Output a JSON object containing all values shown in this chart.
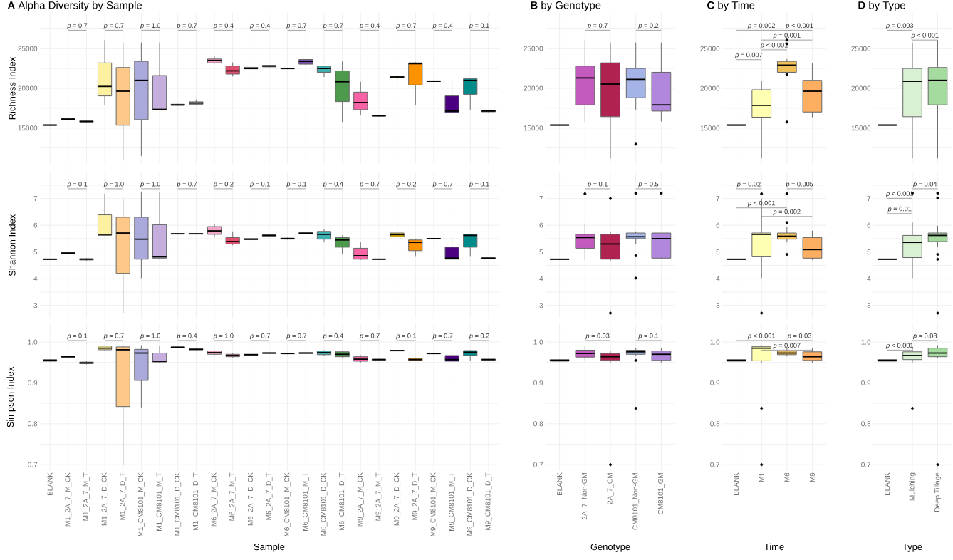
{
  "chart_data": [
    {
      "type": "box",
      "title": "**A** Alpha Diversity by Sample",
      "ylabel": "Richness Index",
      "tick_labels": "y",
      "grid": true,
      "ylim": [
        10500,
        29500
      ],
      "yticks": [
        {
          "value": 12500,
          "label": null
        },
        15000,
        {
          "value": 17500,
          "label": null
        },
        20000,
        {
          "value": 22500,
          "label": null
        },
        25000,
        {
          "value": 27500,
          "label": null
        }
      ],
      "categories": [
        null,
        null,
        null,
        null,
        null,
        null,
        null,
        null,
        null,
        null,
        null,
        null,
        null,
        null,
        null,
        null,
        null,
        null,
        null,
        null,
        null,
        null,
        null,
        null,
        null
      ],
      "colors": [
        "#b3b3b3",
        "#b3b3b3",
        "#b3b3b3",
        "#fdf0a0",
        "#fdc98a",
        "#a9a9dc",
        "#c5aede",
        "#b3b3b3",
        "#b3b3b3",
        "#f4a6c8",
        "#e0506e",
        "#b3b3b3",
        "#b3b3b3",
        "#b3b3b3",
        "#7b4fb0",
        "#3fb0b0",
        "#4d9a4d",
        "#f763a5",
        "#b3b3b3",
        "#e6b400",
        "#ff9200",
        "#b3b3b3",
        "#4b0082",
        "#008b8b",
        "#b3b3b3"
      ],
      "boxes": [
        {
          "low": 15300,
          "q1": 15330,
          "median": 15380,
          "q3": 15420,
          "high": 15450
        },
        {
          "low": 16000,
          "q1": 16050,
          "median": 16130,
          "q3": 16200,
          "high": 16250
        },
        {
          "low": 15700,
          "q1": 15780,
          "median": 15830,
          "q3": 15900,
          "high": 16000
        },
        {
          "low": 17900,
          "q1": 19050,
          "median": 20240,
          "q3": 23200,
          "high": 26070
        },
        {
          "low": 11010,
          "q1": 15360,
          "median": 19640,
          "q3": 22620,
          "high": 25770
        },
        {
          "low": 11490,
          "q1": 16070,
          "median": 21010,
          "q3": 23390,
          "high": 25770
        },
        {
          "low": 17300,
          "q1": 17300,
          "median": 17350,
          "q3": 21610,
          "high": 25770
        },
        {
          "low": 17800,
          "q1": 17850,
          "median": 17920,
          "q3": 18000,
          "high": 18050
        },
        {
          "low": 17950,
          "q1": 18000,
          "median": 18150,
          "q3": 18300,
          "high": 18600
        },
        {
          "low": 23100,
          "q1": 23210,
          "median": 23510,
          "q3": 23690,
          "high": 23990
        },
        {
          "low": 21490,
          "q1": 21790,
          "median": 22200,
          "q3": 22800,
          "high": 23270
        },
        {
          "low": 22400,
          "q1": 22450,
          "median": 22500,
          "q3": 22650,
          "high": 22700
        },
        {
          "low": 22650,
          "q1": 22700,
          "median": 22800,
          "q3": 22900,
          "high": 22950
        },
        {
          "low": 22400,
          "q1": 22450,
          "median": 22500,
          "q3": 22550,
          "high": 22600
        },
        {
          "low": 22800,
          "q1": 23040,
          "median": 23390,
          "q3": 23630,
          "high": 23630
        },
        {
          "low": 21430,
          "q1": 22020,
          "median": 22500,
          "q3": 22800,
          "high": 22800
        },
        {
          "low": 15770,
          "q1": 18330,
          "median": 20830,
          "q3": 22200,
          "high": 23390
        },
        {
          "low": 16670,
          "q1": 17320,
          "median": 18210,
          "q3": 19520,
          "high": 20830
        },
        {
          "low": 16450,
          "q1": 16500,
          "median": 16550,
          "q3": 16580,
          "high": 16600
        },
        {
          "low": 21000,
          "q1": 21300,
          "median": 21430,
          "q3": 21480,
          "high": 21500
        },
        {
          "low": 17920,
          "q1": 20420,
          "median": 23100,
          "q3": 23210,
          "high": 23300
        },
        {
          "low": 20800,
          "q1": 20850,
          "median": 20890,
          "q3": 20950,
          "high": 21000
        },
        {
          "low": 16900,
          "q1": 16960,
          "median": 17140,
          "q3": 19050,
          "high": 20890
        },
        {
          "low": 17300,
          "q1": 19250,
          "median": 21000,
          "q3": 21200,
          "high": 21200
        },
        {
          "low": 17000,
          "q1": 17050,
          "median": 17140,
          "q3": 17180,
          "high": 17200
        }
      ],
      "annotations": [
        "*p* = 0.7",
        "*p* = 0.7",
        "*p* = 1.0",
        "*p* = 0.7",
        "*p* = 0.4",
        "*p* = 0.4",
        "*p* = 0.7",
        "*p* = 0.7",
        "*p* = 0.4",
        "*p* = 0.7",
        "*p* = 0.4",
        "*p* = 0.1"
      ]
    },
    {
      "type": "box",
      "title": "**B** by Genotype",
      "tick_labels": "y",
      "grid": true,
      "ylim": [
        10500,
        29500
      ],
      "yticks": [
        {
          "value": 12500,
          "label": null
        },
        15000,
        {
          "value": 17500,
          "label": null
        },
        20000,
        {
          "value": 22500,
          "label": null
        },
        25000,
        {
          "value": 27500,
          "label": null
        }
      ],
      "categories": [
        null,
        null,
        null,
        null,
        null
      ],
      "colors": [
        "#b3b3b3",
        "#c35bbf",
        "#b0224f",
        "#a4b4e6",
        "#b187dd"
      ],
      "boxes": [
        {
          "low": 15300,
          "q1": 15330,
          "median": 15380,
          "q3": 15420,
          "high": 15450
        },
        {
          "low": 15770,
          "q1": 17920,
          "median": 21310,
          "q3": 22800,
          "high": 26070
        },
        {
          "low": 11190,
          "q1": 16430,
          "median": 20540,
          "q3": 23210,
          "high": 25770
        },
        {
          "low": 17320,
          "q1": 18810,
          "median": 21130,
          "q3": 22500,
          "high": 25770,
          "outliers": [
            12980
          ]
        },
        {
          "low": 15830,
          "q1": 17140,
          "median": 17920,
          "q3": 22020,
          "high": 25770
        }
      ],
      "annotations": [
        "*p* = 0.7",
        "*p* = 0.2"
      ]
    },
    {
      "type": "box",
      "title": "**C** by Time",
      "tick_labels": "y",
      "grid": true,
      "ylim": [
        10500,
        29500
      ],
      "yticks": [
        {
          "value": 12500,
          "label": null
        },
        15000,
        {
          "value": 17500,
          "label": null
        },
        20000,
        {
          "value": 22500,
          "label": null
        },
        25000,
        {
          "value": 27500,
          "label": null
        }
      ],
      "categories": [
        null,
        null,
        null,
        null
      ],
      "colors": [
        "#b3b3b3",
        "#ffffb2",
        "#f0c05a",
        "#fdae61"
      ],
      "boxes": [
        {
          "low": 15300,
          "q1": 15330,
          "median": 15380,
          "q3": 15420,
          "high": 15450
        },
        {
          "low": 11190,
          "q1": 16370,
          "median": 17860,
          "q3": 19820,
          "high": 20890
        },
        {
          "low": 22000,
          "q1": 22020,
          "median": 22920,
          "q3": 23390,
          "high": 23690,
          "outliers": [
            26070,
            25600,
            21730,
            15770
          ]
        },
        {
          "low": 16370,
          "q1": 17020,
          "median": 19640,
          "q3": 21010,
          "high": 23210
        }
      ],
      "annotations": [
        "*p* = 0.002",
        "*p* < 0.001",
        "*p* = 0.001",
        "*p* < 0.001",
        "*p* = 0.007"
      ]
    },
    {
      "type": "box",
      "title": "**D** by Type",
      "tick_labels": "y",
      "grid": true,
      "ylim": [
        10500,
        29500
      ],
      "yticks": [
        {
          "value": 12500,
          "label": null
        },
        15000,
        {
          "value": 17500,
          "label": null
        },
        20000,
        {
          "value": 22500,
          "label": null
        },
        25000,
        {
          "value": 27500,
          "label": null
        }
      ],
      "categories": [
        null,
        null,
        null
      ],
      "colors": [
        "#b3b3b3",
        "#d9f0d3",
        "#a6dba0"
      ],
      "boxes": [
        {
          "low": 15300,
          "q1": 15330,
          "median": 15380,
          "q3": 15420,
          "high": 15450
        },
        {
          "low": 11190,
          "q1": 16430,
          "median": 20890,
          "q3": 22500,
          "high": 25770
        },
        {
          "low": 11190,
          "q1": 17920,
          "median": 21010,
          "q3": 22620,
          "high": 26070
        }
      ],
      "annotations": [
        "*p* = 0.003",
        "*p* < 0.001"
      ]
    },
    {
      "type": "box",
      "ylabel": "Shannon Index",
      "tick_labels": "y",
      "grid": true,
      "ylim": [
        2.5,
        8.0
      ],
      "yticks": [
        3,
        {
          "value": 3.5,
          "label": null
        },
        4,
        {
          "value": 4.5,
          "label": null
        },
        5,
        {
          "value": 5.5,
          "label": null
        },
        6,
        {
          "value": 6.5,
          "label": null
        },
        7,
        {
          "value": 7.5,
          "label": null
        }
      ],
      "categories": [
        null,
        null,
        null,
        null,
        null,
        null,
        null,
        null,
        null,
        null,
        null,
        null,
        null,
        null,
        null,
        null,
        null,
        null,
        null,
        null,
        null,
        null,
        null,
        null,
        null
      ],
      "colors": [
        "#b3b3b3",
        "#b3b3b3",
        "#b3b3b3",
        "#fdf0a0",
        "#fdc98a",
        "#a9a9dc",
        "#c5aede",
        "#b3b3b3",
        "#b3b3b3",
        "#f4a6c8",
        "#e0506e",
        "#b3b3b3",
        "#b3b3b3",
        "#b3b3b3",
        "#7b4fb0",
        "#3fb0b0",
        "#4d9a4d",
        "#f763a5",
        "#b3b3b3",
        "#e6b400",
        "#ff9200",
        "#b3b3b3",
        "#4b0082",
        "#008b8b",
        "#b3b3b3"
      ],
      "boxes": [
        {
          "low": 4.7,
          "q1": 4.71,
          "median": 4.73,
          "q3": 4.74,
          "high": 4.75
        },
        {
          "low": 4.93,
          "q1": 4.94,
          "median": 4.96,
          "q3": 4.97,
          "high": 4.98
        },
        {
          "low": 4.67,
          "q1": 4.7,
          "median": 4.73,
          "q3": 4.75,
          "high": 4.77
        },
        {
          "low": 5.6,
          "q1": 5.62,
          "median": 5.66,
          "q3": 6.39,
          "high": 7.18
        },
        {
          "low": 2.71,
          "q1": 4.2,
          "median": 5.71,
          "q3": 6.3,
          "high": 6.96
        },
        {
          "low": 4.02,
          "q1": 4.73,
          "median": 5.48,
          "q3": 6.3,
          "high": 7.23
        },
        {
          "low": 4.75,
          "q1": 4.77,
          "median": 4.82,
          "q3": 6.02,
          "high": 7.23
        },
        {
          "low": 5.66,
          "q1": 5.67,
          "median": 5.68,
          "q3": 5.69,
          "high": 5.7
        },
        {
          "low": 5.66,
          "q1": 5.67,
          "median": 5.68,
          "q3": 5.69,
          "high": 5.7
        },
        {
          "low": 5.57,
          "q1": 5.66,
          "median": 5.79,
          "q3": 5.95,
          "high": 6.04
        },
        {
          "low": 5.25,
          "q1": 5.3,
          "median": 5.39,
          "q3": 5.54,
          "high": 5.77
        },
        {
          "low": 5.44,
          "q1": 5.46,
          "median": 5.48,
          "q3": 5.5,
          "high": 5.52
        },
        {
          "low": 5.55,
          "q1": 5.58,
          "median": 5.62,
          "q3": 5.65,
          "high": 5.68
        },
        {
          "low": 5.46,
          "q1": 5.48,
          "median": 5.5,
          "q3": 5.52,
          "high": 5.54
        },
        {
          "low": 5.66,
          "q1": 5.68,
          "median": 5.7,
          "q3": 5.72,
          "high": 5.74
        },
        {
          "low": 5.39,
          "q1": 5.48,
          "median": 5.66,
          "q3": 5.77,
          "high": 5.86
        },
        {
          "low": 4.91,
          "q1": 5.18,
          "median": 5.45,
          "q3": 5.54,
          "high": 5.62
        },
        {
          "low": 4.7,
          "q1": 4.73,
          "median": 4.86,
          "q3": 5.14,
          "high": 5.36
        },
        {
          "low": 4.71,
          "q1": 4.72,
          "median": 4.73,
          "q3": 4.74,
          "high": 4.75
        },
        {
          "low": 5.55,
          "q1": 5.57,
          "median": 5.65,
          "q3": 5.71,
          "high": 5.8
        },
        {
          "low": 4.82,
          "q1": 5.05,
          "median": 5.36,
          "q3": 5.45,
          "high": 5.5
        },
        {
          "low": 5.48,
          "q1": 5.49,
          "median": 5.5,
          "q3": 5.51,
          "high": 5.52
        },
        {
          "low": 4.73,
          "q1": 4.73,
          "median": 4.77,
          "q3": 5.18,
          "high": 5.57
        },
        {
          "low": 4.82,
          "q1": 5.18,
          "median": 5.62,
          "q3": 5.66,
          "high": 5.66
        },
        {
          "low": 4.75,
          "q1": 4.76,
          "median": 4.77,
          "q3": 4.78,
          "high": 4.79
        }
      ],
      "annotations": [
        "*p* = 0.1",
        "*p* = 1.0",
        "*p* = 1.0",
        "*p* = 0.7",
        "*p* = 0.2",
        "*p* = 0.1",
        "*p* = 0.1",
        "*p* = 0.4",
        "*p* = 0.7",
        "*p* = 0.2",
        "*p* = 0.7",
        "*p* = 0.1"
      ]
    },
    {
      "type": "box",
      "tick_labels": "y",
      "grid": true,
      "ylim": [
        2.5,
        8.0
      ],
      "yticks": [
        3,
        {
          "value": 3.5,
          "label": null
        },
        4,
        {
          "value": 4.5,
          "label": null
        },
        5,
        {
          "value": 5.5,
          "label": null
        },
        6,
        {
          "value": 6.5,
          "label": null
        },
        7,
        {
          "value": 7.5,
          "label": null
        }
      ],
      "categories": [
        null,
        null,
        null,
        null,
        null
      ],
      "colors": [
        "#b3b3b3",
        "#c35bbf",
        "#b0224f",
        "#a4b4e6",
        "#b187dd"
      ],
      "boxes": [
        {
          "low": 4.7,
          "q1": 4.71,
          "median": 4.73,
          "q3": 4.74,
          "high": 4.75
        },
        {
          "low": 4.7,
          "q1": 5.14,
          "median": 5.54,
          "q3": 5.66,
          "high": 6.07,
          "outliers": [
            7.18
          ]
        },
        {
          "low": 4.64,
          "q1": 4.73,
          "median": 5.3,
          "q3": 5.66,
          "high": 5.77,
          "outliers": [
            7.0,
            2.71
          ]
        },
        {
          "low": 5.3,
          "q1": 5.5,
          "median": 5.57,
          "q3": 5.71,
          "high": 5.77,
          "outliers": [
            7.2,
            4.86,
            4.02
          ]
        },
        {
          "low": 4.73,
          "q1": 4.77,
          "median": 5.5,
          "q3": 5.71,
          "high": 5.71,
          "outliers": [
            7.2
          ]
        }
      ],
      "annotations": [
        "*p* = 0.1",
        "*p* = 0.5"
      ]
    },
    {
      "type": "box",
      "tick_labels": "y",
      "grid": true,
      "ylim": [
        2.5,
        8.0
      ],
      "yticks": [
        3,
        {
          "value": 3.5,
          "label": null
        },
        4,
        {
          "value": 4.5,
          "label": null
        },
        5,
        {
          "value": 5.5,
          "label": null
        },
        6,
        {
          "value": 6.5,
          "label": null
        },
        7,
        {
          "value": 7.5,
          "label": null
        }
      ],
      "categories": [
        null,
        null,
        null,
        null
      ],
      "colors": [
        "#b3b3b3",
        "#ffffb2",
        "#f0c05a",
        "#fdae61"
      ],
      "boxes": [
        {
          "low": 4.7,
          "q1": 4.71,
          "median": 4.73,
          "q3": 4.74,
          "high": 4.75
        },
        {
          "low": 4.02,
          "q1": 4.82,
          "median": 5.66,
          "q3": 5.71,
          "high": 7.0,
          "outliers": [
            7.18,
            2.71
          ]
        },
        {
          "low": 5.36,
          "q1": 5.48,
          "median": 5.59,
          "q3": 5.71,
          "high": 5.93,
          "outliers": [
            7.18,
            6.1,
            4.91
          ]
        },
        {
          "low": 4.7,
          "q1": 4.77,
          "median": 5.09,
          "q3": 5.54,
          "high": 5.8
        }
      ],
      "annotations": [
        "*p* = 0.02",
        "*p* < 0.001",
        "*p* = 0.005",
        "*p* = 0.002"
      ]
    },
    {
      "type": "box",
      "tick_labels": "y",
      "grid": true,
      "ylim": [
        2.5,
        8.0
      ],
      "yticks": [
        3,
        {
          "value": 3.5,
          "label": null
        },
        4,
        {
          "value": 4.5,
          "label": null
        },
        5,
        {
          "value": 5.5,
          "label": null
        },
        6,
        {
          "value": 6.5,
          "label": null
        },
        7,
        {
          "value": 7.5,
          "label": null
        }
      ],
      "categories": [
        null,
        null,
        null
      ],
      "colors": [
        "#b3b3b3",
        "#d9f0d3",
        "#a6dba0"
      ],
      "boxes": [
        {
          "low": 4.7,
          "q1": 4.71,
          "median": 4.73,
          "q3": 4.74,
          "high": 4.75
        },
        {
          "low": 4.02,
          "q1": 4.79,
          "median": 5.36,
          "q3": 5.62,
          "high": 6.1,
          "outliers": [
            7.2
          ]
        },
        {
          "low": 5.18,
          "q1": 5.39,
          "median": 5.62,
          "q3": 5.71,
          "high": 5.98,
          "outliers": [
            7.2,
            7.02,
            4.91,
            4.73,
            2.71
          ]
        }
      ],
      "annotations": [
        "*p* < 0.001",
        "*p* = 0.04",
        "*p* = 0.01"
      ]
    },
    {
      "type": "box",
      "ylabel": "Simpson Index",
      "xlabel": "Sample",
      "grid": true,
      "ylim": [
        0.685,
        1.045
      ],
      "yticks": [
        0.7,
        {
          "value": 0.75,
          "label": null
        },
        0.8,
        {
          "value": 0.85,
          "label": null
        },
        0.9,
        {
          "value": 0.95,
          "label": null
        },
        {
          "value": 1.0,
          "label": "1.0"
        }
      ],
      "categories": [
        "BLANK",
        "M1_2A_7_M_CK",
        "M1_2A_7_M_T",
        "M1_2A_7_D_CK",
        "M1_2A_7_D_T",
        "M1_CM8101_M_CK",
        "M1_CM8101_M_T",
        "M1_CM8101_D_CK",
        "M1_CM8101_D_T",
        "M6_2A_7_M_CK",
        "M6_2A_7_M_T",
        "M6_2A_7_D_CK",
        "M6_2A_7_D_T",
        "M6_CM8101_M_CK",
        "M6_CM8101_M_T",
        "M6_CM8101_D_CK",
        "M6_CM8101_D_T",
        "M9_2A_7_M_CK",
        "M9_2A_7_M_T",
        "M9_2A_7_D_CK",
        "M9_2A_7_D_T",
        "M9_CM8101_M_CK",
        "M9_CM8101_M_T",
        "M9_CM8101_D_CK",
        "M9_CM8101_D_T"
      ],
      "colors": [
        "#b3b3b3",
        "#b3b3b3",
        "#b3b3b3",
        "#fdf0a0",
        "#fdc98a",
        "#a9a9dc",
        "#c5aede",
        "#b3b3b3",
        "#b3b3b3",
        "#f4a6c8",
        "#e0506e",
        "#b3b3b3",
        "#b3b3b3",
        "#b3b3b3",
        "#7b4fb0",
        "#3fb0b0",
        "#4d9a4d",
        "#f763a5",
        "#b3b3b3",
        "#e6b400",
        "#ff9200",
        "#b3b3b3",
        "#4b0082",
        "#008b8b",
        "#b3b3b3"
      ],
      "boxes": [
        {
          "low": 0.952,
          "q1": 0.953,
          "median": 0.955,
          "q3": 0.957,
          "high": 0.958
        },
        {
          "low": 0.962,
          "q1": 0.963,
          "median": 0.964,
          "q3": 0.966,
          "high": 0.967
        },
        {
          "low": 0.945,
          "q1": 0.947,
          "median": 0.949,
          "q3": 0.951,
          "high": 0.953
        },
        {
          "low": 0.979,
          "q1": 0.981,
          "median": 0.985,
          "q3": 0.99,
          "high": 0.992
        },
        {
          "low": 0.7,
          "q1": 0.842,
          "median": 0.981,
          "q3": 0.988,
          "high": 0.993
        },
        {
          "low": 0.84,
          "q1": 0.906,
          "median": 0.973,
          "q3": 0.982,
          "high": 0.992
        },
        {
          "low": 0.949,
          "q1": 0.951,
          "median": 0.953,
          "q3": 0.973,
          "high": 0.99
        },
        {
          "low": 0.985,
          "q1": 0.986,
          "median": 0.987,
          "q3": 0.988,
          "high": 0.989
        },
        {
          "low": 0.98,
          "q1": 0.981,
          "median": 0.982,
          "q3": 0.983,
          "high": 0.984
        },
        {
          "low": 0.968,
          "q1": 0.97,
          "median": 0.974,
          "q3": 0.978,
          "high": 0.98
        },
        {
          "low": 0.962,
          "q1": 0.964,
          "median": 0.967,
          "q3": 0.97,
          "high": 0.972
        },
        {
          "low": 0.967,
          "q1": 0.968,
          "median": 0.969,
          "q3": 0.97,
          "high": 0.971
        },
        {
          "low": 0.971,
          "q1": 0.972,
          "median": 0.973,
          "q3": 0.974,
          "high": 0.975
        },
        {
          "low": 0.97,
          "q1": 0.971,
          "median": 0.972,
          "q3": 0.973,
          "high": 0.974
        },
        {
          "low": 0.971,
          "q1": 0.972,
          "median": 0.973,
          "q3": 0.974,
          "high": 0.975
        },
        {
          "low": 0.966,
          "q1": 0.969,
          "median": 0.974,
          "q3": 0.978,
          "high": 0.98
        },
        {
          "low": 0.962,
          "q1": 0.964,
          "median": 0.97,
          "q3": 0.976,
          "high": 0.978
        },
        {
          "low": 0.95,
          "q1": 0.953,
          "median": 0.958,
          "q3": 0.964,
          "high": 0.968
        },
        {
          "low": 0.955,
          "q1": 0.956,
          "median": 0.957,
          "q3": 0.958,
          "high": 0.959
        },
        {
          "low": 0.977,
          "q1": 0.978,
          "median": 0.979,
          "q3": 0.98,
          "high": 0.981
        },
        {
          "low": 0.953,
          "q1": 0.955,
          "median": 0.957,
          "q3": 0.96,
          "high": 0.962
        },
        {
          "low": 0.97,
          "q1": 0.971,
          "median": 0.972,
          "q3": 0.973,
          "high": 0.974
        },
        {
          "low": 0.953,
          "q1": 0.953,
          "median": 0.957,
          "q3": 0.967,
          "high": 0.976
        },
        {
          "low": 0.955,
          "q1": 0.967,
          "median": 0.975,
          "q3": 0.979,
          "high": 0.98
        },
        {
          "low": 0.955,
          "q1": 0.956,
          "median": 0.957,
          "q3": 0.958,
          "high": 0.959
        }
      ],
      "annotations": [
        "*p* = 0.1",
        "*p* = 0.7",
        "*p* = 1.0",
        "*p* = 0.4",
        "*p* = 1.0",
        "*p* = 0.7",
        "*p* = 0.7",
        "*p* = 0.4",
        "*p* = 0.7",
        "*p* = 0.1",
        "*p* = 0.7",
        "*p* = 0.2"
      ]
    },
    {
      "type": "box",
      "xlabel": "Genotype",
      "grid": true,
      "ylim": [
        0.685,
        1.045
      ],
      "yticks": [
        0.7,
        {
          "value": 0.75,
          "label": null
        },
        0.8,
        {
          "value": 0.85,
          "label": null
        },
        0.9,
        {
          "value": 0.95,
          "label": null
        },
        {
          "value": 1.0,
          "label": "1.0"
        }
      ],
      "categories": [
        "BLANK",
        "2A_7_Non-GM",
        "2A_7_GM",
        "CM8101_Non-GM",
        "CM8101_GM"
      ],
      "colors": [
        "#b3b3b3",
        "#c35bbf",
        "#b0224f",
        "#a4b4e6",
        "#b187dd"
      ],
      "boxes": [
        {
          "low": 0.952,
          "q1": 0.953,
          "median": 0.955,
          "q3": 0.957,
          "high": 0.958
        },
        {
          "low": 0.955,
          "q1": 0.963,
          "median": 0.972,
          "q3": 0.98,
          "high": 0.99
        },
        {
          "low": 0.95,
          "q1": 0.955,
          "median": 0.964,
          "q3": 0.972,
          "high": 0.978,
          "outliers": [
            0.7
          ]
        },
        {
          "low": 0.965,
          "q1": 0.97,
          "median": 0.976,
          "q3": 0.98,
          "high": 0.985,
          "outliers": [
            0.955,
            0.838
          ]
        },
        {
          "low": 0.95,
          "q1": 0.955,
          "median": 0.97,
          "q3": 0.978,
          "high": 0.985
        }
      ],
      "annotations": [
        "*p* = 0.03",
        "*p* = 0.1"
      ]
    },
    {
      "type": "box",
      "xlabel": "Time",
      "grid": true,
      "ylim": [
        0.685,
        1.045
      ],
      "yticks": [
        0.7,
        {
          "value": 0.75,
          "label": null
        },
        0.8,
        {
          "value": 0.85,
          "label": null
        },
        0.9,
        {
          "value": 0.95,
          "label": null
        },
        {
          "value": 1.0,
          "label": "1.0"
        }
      ],
      "categories": [
        "BLANK",
        "M1",
        "M6",
        "M9"
      ],
      "colors": [
        "#b3b3b3",
        "#ffffb2",
        "#f0c05a",
        "#fdae61"
      ],
      "boxes": [
        {
          "low": 0.952,
          "q1": 0.953,
          "median": 0.955,
          "q3": 0.957,
          "high": 0.958
        },
        {
          "low": 0.95,
          "q1": 0.954,
          "median": 0.985,
          "q3": 0.989,
          "high": 0.992,
          "outliers": [
            0.838,
            0.7
          ]
        },
        {
          "low": 0.965,
          "q1": 0.969,
          "median": 0.973,
          "q3": 0.978,
          "high": 0.985
        },
        {
          "low": 0.95,
          "q1": 0.955,
          "median": 0.964,
          "q3": 0.976,
          "high": 0.985
        }
      ],
      "annotations": [
        "*p* < 0.001",
        "*p* = 0.03",
        "*p* = 0.007"
      ]
    },
    {
      "type": "box",
      "xlabel": "Type",
      "grid": true,
      "ylim": [
        0.685,
        1.045
      ],
      "yticks": [
        0.7,
        {
          "value": 0.75,
          "label": null
        },
        0.8,
        {
          "value": 0.85,
          "label": null
        },
        0.9,
        {
          "value": 0.95,
          "label": null
        },
        {
          "value": 1.0,
          "label": "1.0"
        }
      ],
      "categories": [
        "BLANK",
        "Mulching",
        "Deep Tillage"
      ],
      "colors": [
        "#b3b3b3",
        "#d9f0d3",
        "#a6dba0"
      ],
      "boxes": [
        {
          "low": 0.952,
          "q1": 0.953,
          "median": 0.955,
          "q3": 0.957,
          "high": 0.958
        },
        {
          "low": 0.95,
          "q1": 0.957,
          "median": 0.967,
          "q3": 0.976,
          "high": 0.985,
          "outliers": [
            0.838
          ]
        },
        {
          "low": 0.96,
          "q1": 0.964,
          "median": 0.973,
          "q3": 0.985,
          "high": 0.992,
          "outliers": [
            0.7
          ]
        }
      ],
      "annotations": [
        "*p* < 0.001",
        "*p* = 0.08"
      ]
    }
  ]
}
